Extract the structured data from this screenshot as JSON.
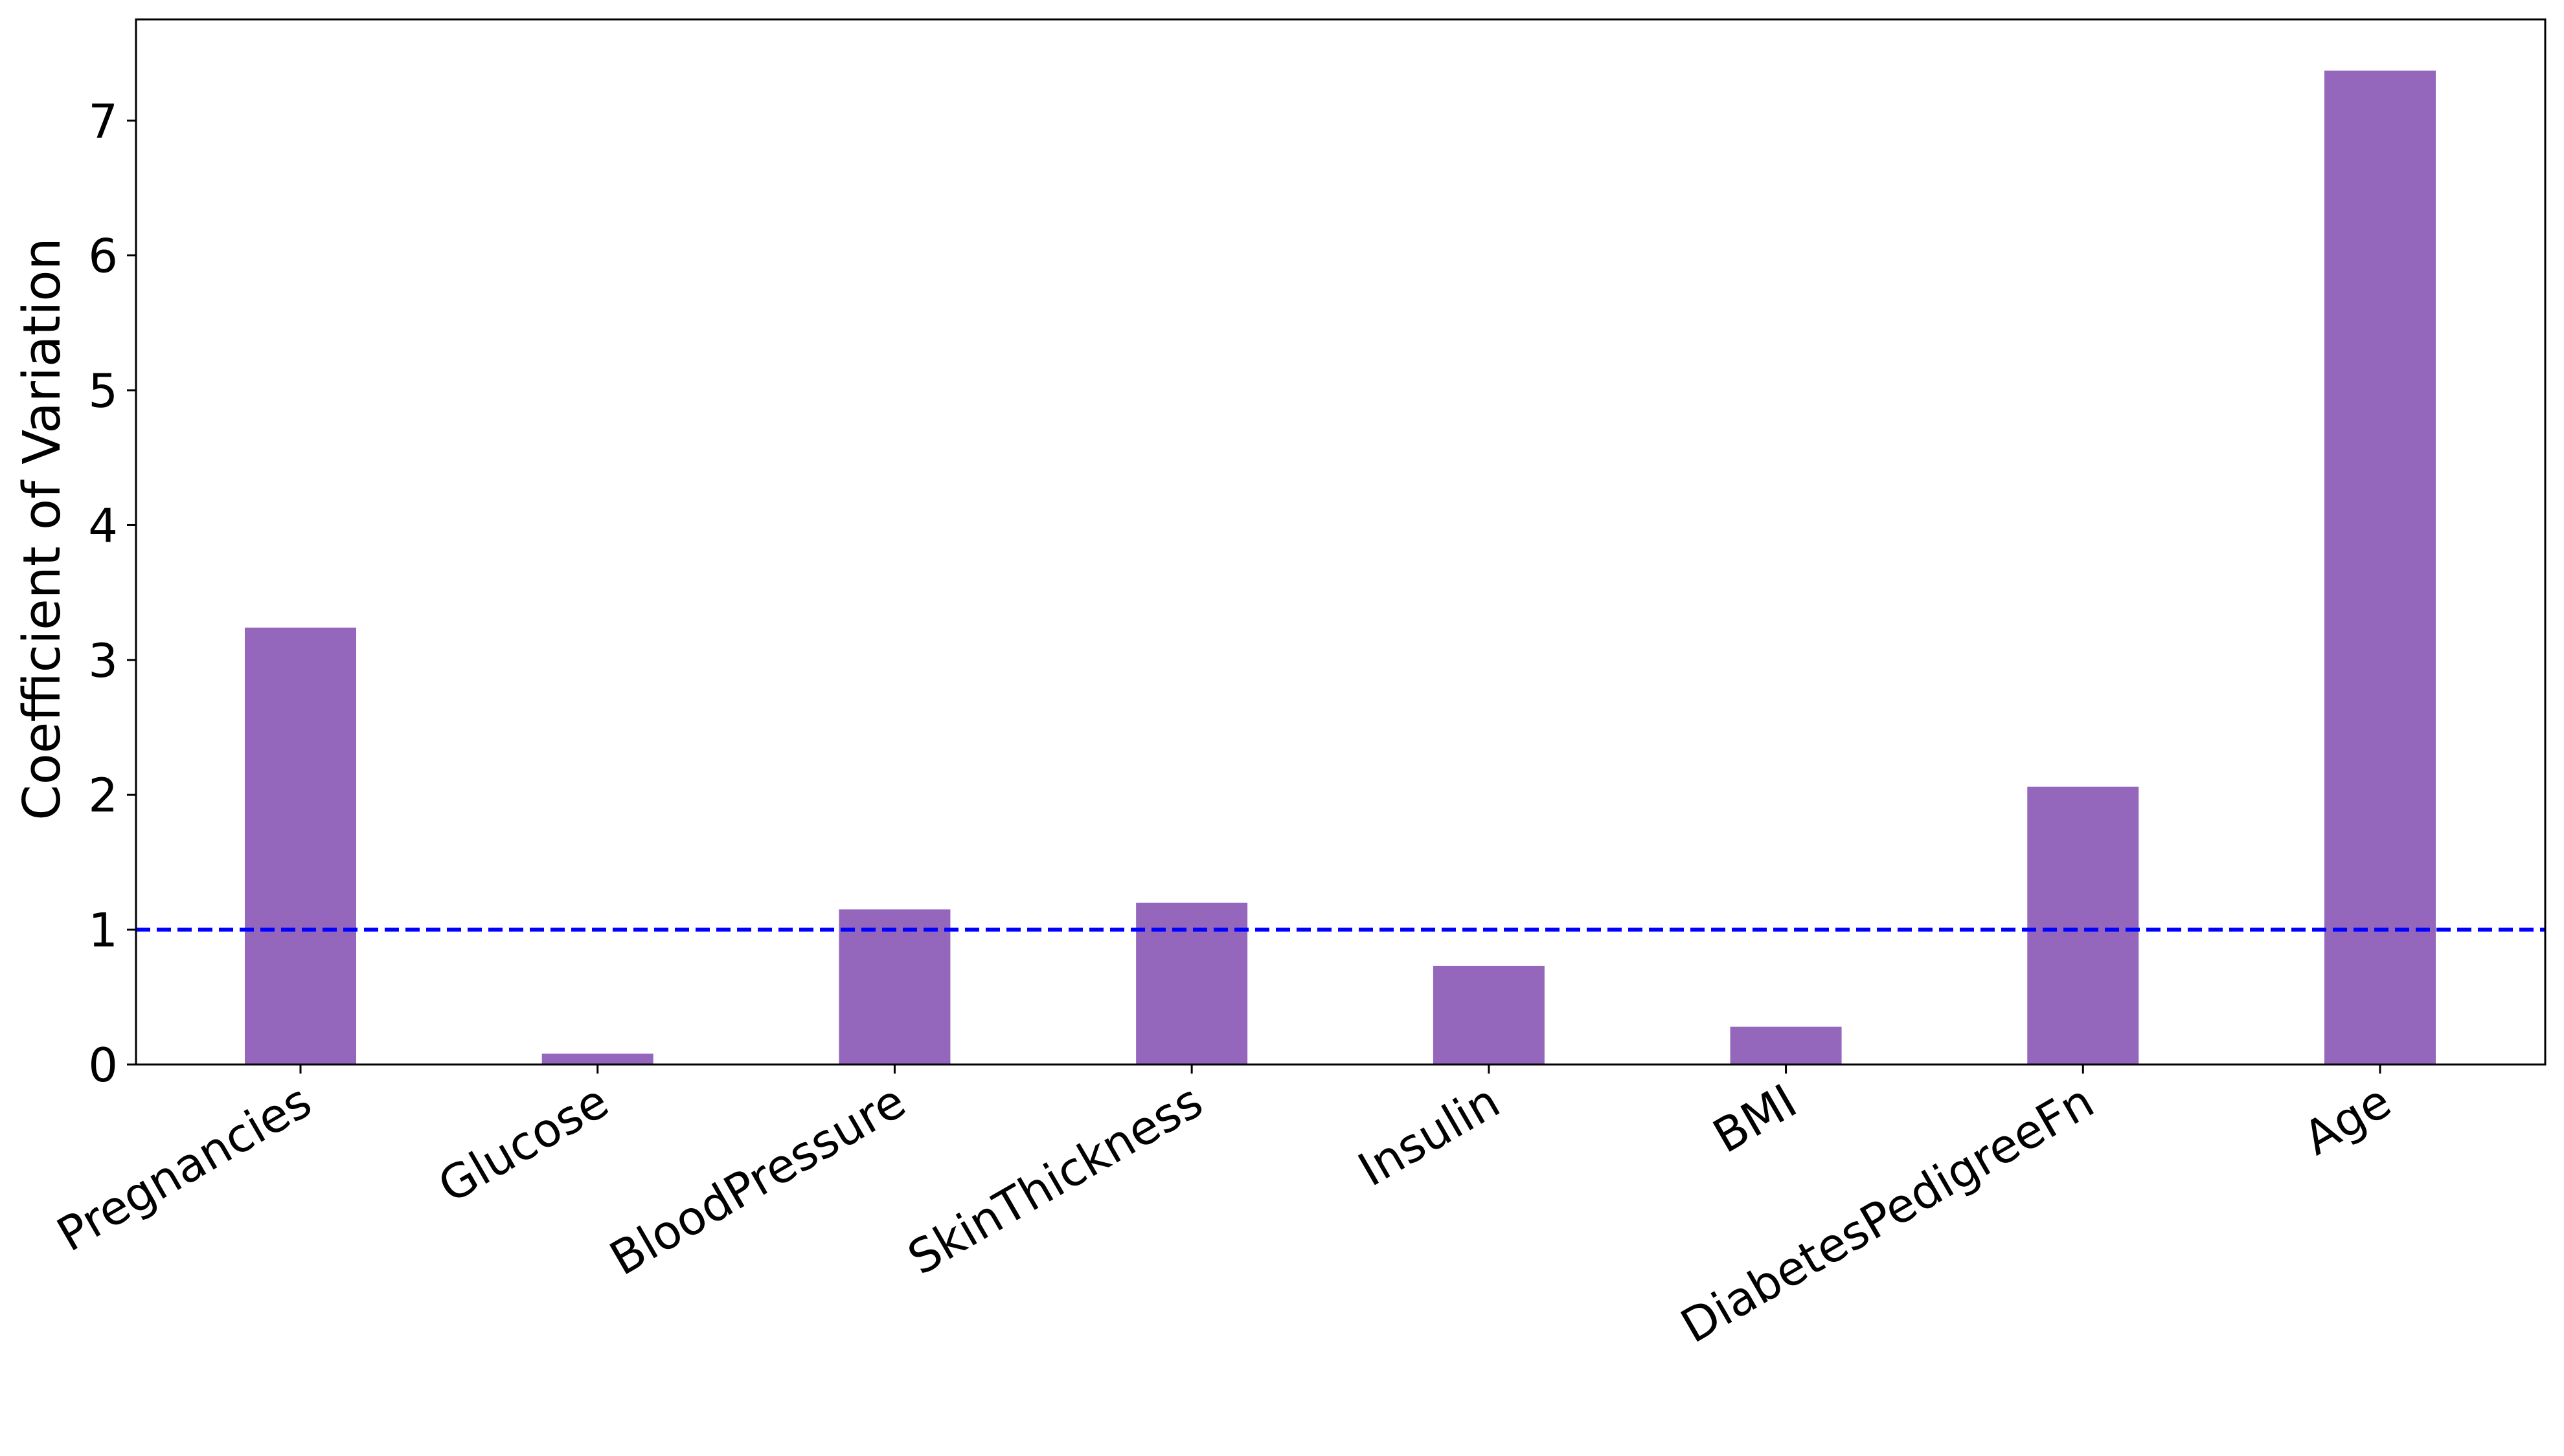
{
  "chart_data": {
    "type": "bar",
    "title": "",
    "xlabel": "",
    "ylabel": "Coefficient of Variation",
    "categories": [
      "Pregnancies",
      "Glucose",
      "BloodPressure",
      "SkinThickness",
      "Insulin",
      "BMI",
      "DiabetesPedigreeFn",
      "Age"
    ],
    "values": [
      3.24,
      0.08,
      1.15,
      1.2,
      0.73,
      0.28,
      2.06,
      7.37
    ],
    "ylim": [
      0,
      7.75
    ],
    "yticks": [
      0,
      1,
      2,
      3,
      4,
      5,
      6,
      7
    ],
    "reference_line": {
      "y": 1,
      "style": "dashed",
      "color": "#0000ff"
    },
    "bar_color": "#9467bd",
    "grid": false,
    "legend": "none"
  }
}
